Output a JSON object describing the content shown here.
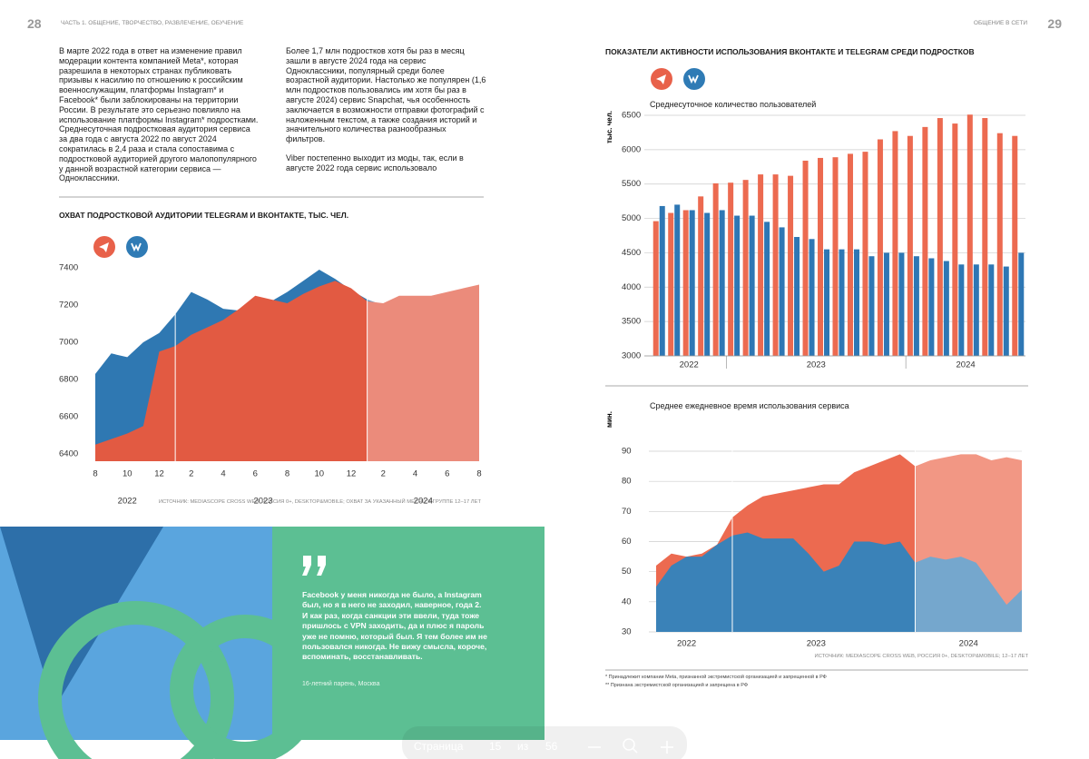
{
  "header": {
    "left_page_number": "28",
    "left_section": "ЧАСТЬ 1. ОБЩЕНИЕ, ТВОРЧЕСТВО, РАЗВЛЕЧЕНИЕ, ОБУЧЕНИЕ",
    "right_section": "ОБЩЕНИЕ В СЕТИ",
    "right_page_number": "29"
  },
  "text": {
    "column1": "В марте 2022 года в ответ на изменение правил модерации контента компанией Meta*, которая разрешила в некоторых странах публиковать призывы к насилию по отношению к российским военнослужащим, платформы Instagram* и Facebook* были заблокированы на территории России. В результате это серьезно повлияло на использование платформы Instagram* подростками. Среднесуточная подростковая аудитория сервиса за два года с августа 2022 по август 2024 сократилась в 2,4 раза и стала сопоставима с подростковой аудиторией другого малопопулярного у данной возрастной категории сервиса — Одноклассники.",
    "column2": [
      "Более 1,7 млн подростков хотя бы раз в месяц зашли в августе 2024 года на сервис Одноклассники, популярный среди более возрастной аудитории. Настолько же популярен (1,6 млн подростков пользовались им хотя бы раз в августе 2024) сервис Snapchat, чья особенность заключается в возможности отправки фотографий с наложенным текстом, а также создания историй и значительного количества разнообразных фильтров.",
      "Viber постепенно выходит из моды, так, если в августе 2022 года сервис использовало"
    ]
  },
  "right_title": "ПОКАЗАТЕЛИ АКТИВНОСТИ ИСПОЛЬЗОВАНИЯ ВКОНТАКТЕ И TELEGRAM СРЕДИ ПОДРОСТКОВ",
  "chart_data": [
    {
      "type": "area",
      "title": "ОХВАТ ПОДРОСТКОВОЙ АУДИТОРИИ TELEGRAM И ВКОНТАКТЕ, ТЫС. ЧЕЛ.",
      "x": [
        "2022-08",
        "2022-09",
        "2022-10",
        "2022-11",
        "2022-12",
        "2023-01",
        "2023-02",
        "2023-03",
        "2023-04",
        "2023-05",
        "2023-06",
        "2023-07",
        "2023-08",
        "2023-09",
        "2023-10",
        "2023-11",
        "2023-12",
        "2024-01",
        "2024-02",
        "2024-03",
        "2024-04",
        "2024-05",
        "2024-06",
        "2024-07",
        "2024-08"
      ],
      "xticks": [
        {
          "value": "2022-08",
          "label": "8"
        },
        {
          "value": "2022-10",
          "label": "10"
        },
        {
          "value": "2022-12",
          "label": "12"
        },
        {
          "value": "2023-02",
          "label": "2"
        },
        {
          "value": "2023-04",
          "label": "4"
        },
        {
          "value": "2023-06",
          "label": "6"
        },
        {
          "value": "2023-08",
          "label": "8"
        },
        {
          "value": "2023-10",
          "label": "10"
        },
        {
          "value": "2023-12",
          "label": "12"
        },
        {
          "value": "2024-02",
          "label": "2"
        },
        {
          "value": "2024-04",
          "label": "4"
        },
        {
          "value": "2024-06",
          "label": "6"
        },
        {
          "value": "2024-08",
          "label": "8"
        }
      ],
      "year_labels": [
        "2022",
        "2023",
        "2024"
      ],
      "series": [
        {
          "color": "#2f78b2",
          "values": [
            6830,
            6940,
            6920,
            7000,
            7050,
            7150,
            7270,
            7230,
            7180,
            7170,
            7190,
            7220,
            7270,
            7330,
            7390,
            7340,
            7280,
            7230,
            7200,
            7170,
            7150,
            7180,
            7210,
            7200,
            7190
          ]
        },
        {
          "color": "#e25a42",
          "values": [
            6450,
            6480,
            6510,
            6550,
            6950,
            6980,
            7040,
            7080,
            7120,
            7180,
            7250,
            7230,
            7210,
            7260,
            7300,
            7330,
            7290,
            7220,
            7210,
            7250,
            7250,
            7250,
            7270,
            7290,
            7310
          ]
        }
      ],
      "ylim": [
        6400,
        7400
      ],
      "yticks": [
        6400,
        6600,
        6800,
        7000,
        7200,
        7400
      ],
      "grid": false,
      "source": "ИСТОЧНИК: MEDIASCOPE CROSS WEB, РОССИЯ 0+, DESKTOP&MOBILE; ОХВАТ ЗА УКАЗАННЫЙ МЕСЯЦ В ГРУППЕ 12–17 ЛЕТ"
    },
    {
      "type": "bar",
      "subtitle": "Среднесуточное количество пользователей",
      "ylabel": "тыс. чел.",
      "x": [
        "2022-08",
        "2022-09",
        "2022-10",
        "2022-11",
        "2022-12",
        "2023-01",
        "2023-02",
        "2023-03",
        "2023-04",
        "2023-05",
        "2023-06",
        "2023-07",
        "2023-08",
        "2023-09",
        "2023-10",
        "2023-11",
        "2023-12",
        "2024-01",
        "2024-02",
        "2024-03",
        "2024-04",
        "2024-05",
        "2024-06",
        "2024-07",
        "2024-08"
      ],
      "year_labels": [
        "2022",
        "2023",
        "2024"
      ],
      "series": [
        {
          "color": "#ec6a50",
          "values": [
            4960,
            5080,
            5120,
            5320,
            5510,
            5520,
            5560,
            5640,
            5640,
            5620,
            5840,
            5880,
            5890,
            5940,
            5970,
            6150,
            6270,
            6200,
            6330,
            6460,
            6380,
            6510,
            6460,
            6240,
            6200
          ]
        },
        {
          "color": "#2e77b4",
          "values": [
            5180,
            5200,
            5120,
            5080,
            5120,
            5040,
            5040,
            4950,
            4870,
            4730,
            4700,
            4550,
            4550,
            4550,
            4450,
            4500,
            4500,
            4450,
            4420,
            4380,
            4330,
            4330,
            4330,
            4300,
            4500
          ]
        }
      ],
      "ylim": [
        3000,
        6500
      ],
      "yticks": [
        3000,
        3500,
        4000,
        4500,
        5000,
        5500,
        6000,
        6500
      ],
      "grid": true
    },
    {
      "type": "area",
      "subtitle": "Среднее ежедневное время использования сервиса",
      "ylabel": "мин.",
      "x": [
        "2022-08",
        "2022-09",
        "2022-10",
        "2022-11",
        "2022-12",
        "2023-01",
        "2023-02",
        "2023-03",
        "2023-04",
        "2023-05",
        "2023-06",
        "2023-07",
        "2023-08",
        "2023-09",
        "2023-10",
        "2023-11",
        "2023-12",
        "2024-01",
        "2024-02",
        "2024-03",
        "2024-04",
        "2024-05",
        "2024-06",
        "2024-07",
        "2024-08"
      ],
      "year_labels": [
        "2022",
        "2023",
        "2024"
      ],
      "series": [
        {
          "color": "#ec6a50",
          "values": [
            52,
            56,
            55,
            56,
            59,
            68,
            72,
            75,
            76,
            77,
            78,
            79,
            79,
            83,
            85,
            87,
            89,
            85,
            87,
            88,
            89,
            89,
            87,
            88,
            87
          ]
        },
        {
          "color": "#3a82b8",
          "values": [
            45,
            52,
            55,
            55,
            59,
            62,
            63,
            61,
            61,
            61,
            56,
            50,
            52,
            60,
            60,
            59,
            60,
            53,
            55,
            54,
            55,
            53,
            46,
            39,
            44
          ]
        }
      ],
      "ylim": [
        30,
        90
      ],
      "yticks": [
        30,
        40,
        50,
        60,
        70,
        80,
        90
      ],
      "grid": true,
      "source": "ИСТОЧНИК: MEDIASCOPE CROSS WEB, РОССИЯ 0+, DESKTOP&MOBILE; 12–17 ЛЕТ"
    }
  ],
  "quote": {
    "text": "Facebook у меня никогда не было, а Instagram был, но я в него не заходил, наверное, года 2. И как раз, когда санкции эти ввели, туда тоже пришлось с VPN заходить, да и плюс я пароль уже не помню, который был. Я тем более им не пользовался никогда. Не вижу смысла, короче, вспоминать, восстанавливать.",
    "author": "16-летний парень, Москва"
  },
  "footnotes": [
    "* Принадлежит компании Meta, признанной экстремистской организацией и запрещенной в РФ",
    "** Признана экстремистской организацией и запрещена в РФ"
  ],
  "viewer": {
    "page_label": "Страница",
    "page": "15",
    "of": "из",
    "total": "56"
  }
}
